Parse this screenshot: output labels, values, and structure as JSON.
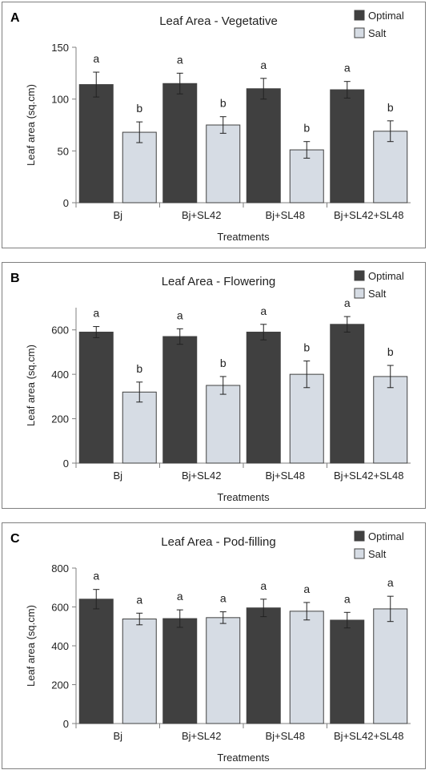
{
  "chart_data": [
    {
      "panel_label": "A",
      "type": "bar",
      "title": "Leaf Area - Vegetative",
      "xlabel": "Treatments",
      "ylabel": "Leaf area (sq.cm)",
      "categories": [
        "Bj",
        "Bj+SL42",
        "Bj+SL48",
        "Bj+SL42+SL48"
      ],
      "ylim": [
        0,
        150
      ],
      "yticks": [
        0,
        50,
        100,
        150
      ],
      "legend_position": "top-right",
      "series": [
        {
          "name": "Optimal",
          "color": "#404040",
          "values": [
            114,
            115,
            110,
            109
          ],
          "errors": [
            12,
            10,
            10,
            8
          ],
          "labels": [
            "a",
            "a",
            "a",
            "a"
          ]
        },
        {
          "name": "Salt",
          "color": "#d6dce4",
          "values": [
            68,
            75,
            51,
            69
          ],
          "errors": [
            10,
            8,
            8,
            10
          ],
          "labels": [
            "b",
            "b",
            "b",
            "b"
          ]
        }
      ]
    },
    {
      "panel_label": "B",
      "type": "bar",
      "title": "Leaf Area - Flowering",
      "xlabel": "Treatments",
      "ylabel": "Leaf area (sq.cm)",
      "categories": [
        "Bj",
        "Bj+SL42",
        "Bj+SL48",
        "Bj+SL42+SL48"
      ],
      "ylim": [
        0,
        700
      ],
      "yticks": [
        0,
        200,
        400,
        600
      ],
      "legend_position": "top-right",
      "series": [
        {
          "name": "Optimal",
          "color": "#404040",
          "values": [
            590,
            570,
            590,
            625
          ],
          "errors": [
            25,
            35,
            35,
            35
          ],
          "labels": [
            "a",
            "a",
            "a",
            "a"
          ]
        },
        {
          "name": "Salt",
          "color": "#d6dce4",
          "values": [
            320,
            350,
            400,
            390
          ],
          "errors": [
            45,
            40,
            60,
            50
          ],
          "labels": [
            "b",
            "b",
            "b",
            "b"
          ]
        }
      ]
    },
    {
      "panel_label": "C",
      "type": "bar",
      "title": "Leaf Area - Pod-filling",
      "xlabel": "Treatments",
      "ylabel": "Leaf area (sq.cm)",
      "categories": [
        "Bj",
        "Bj+SL42",
        "Bj+SL48",
        "Bj+SL42+SL48"
      ],
      "ylim": [
        0,
        800
      ],
      "yticks": [
        0,
        200,
        400,
        600,
        800
      ],
      "legend_position": "top-right",
      "series": [
        {
          "name": "Optimal",
          "color": "#404040",
          "values": [
            640,
            540,
            595,
            532
          ],
          "errors": [
            50,
            45,
            45,
            40
          ],
          "labels": [
            "a",
            "a",
            "a",
            "a"
          ]
        },
        {
          "name": "Salt",
          "color": "#d6dce4",
          "values": [
            538,
            545,
            578,
            590
          ],
          "errors": [
            30,
            30,
            45,
            65
          ],
          "labels": [
            "a",
            "a",
            "a",
            "a"
          ]
        }
      ]
    }
  ]
}
